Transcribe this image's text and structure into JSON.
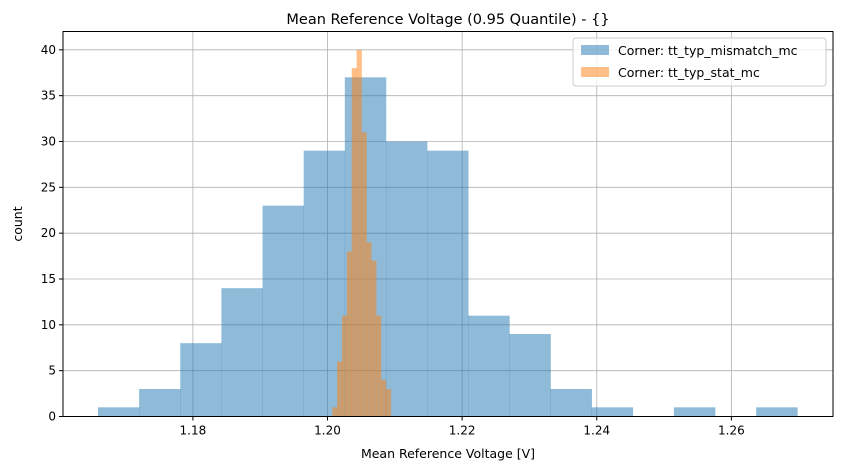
{
  "chart_data": {
    "type": "histogram",
    "title": "Mean Reference Voltage (0.95 Quantile) - {}",
    "xlabel": "Mean Reference Voltage [V]",
    "ylabel": "count",
    "xlim": [
      1.1607,
      1.2751
    ],
    "ylim": [
      0,
      42
    ],
    "xticks": [
      1.18,
      1.2,
      1.22,
      1.24,
      1.26
    ],
    "xtick_labels": [
      "1.18",
      "1.20",
      "1.22",
      "1.24",
      "1.26"
    ],
    "yticks": [
      0,
      5,
      10,
      15,
      20,
      25,
      30,
      35,
      40
    ],
    "yticks_labels": [
      "0",
      "5",
      "10",
      "15",
      "20",
      "25",
      "30",
      "35",
      "40"
    ],
    "grid": true,
    "legend_position": "top-right",
    "series": [
      {
        "name": "Corner: tt_typ_mismatch_mc",
        "color": "#1f77b4",
        "alpha": 0.5,
        "bin_start": 1.1659,
        "bin_end": 1.2698,
        "counts": [
          1,
          3,
          8,
          14,
          23,
          29,
          37,
          30,
          29,
          11,
          9,
          3,
          1,
          0,
          1,
          0,
          1
        ]
      },
      {
        "name": "Corner: tt_typ_stat_mc",
        "color": "#ff7f0e",
        "alpha": 0.5,
        "bin_start": 1.2007,
        "bin_end": 1.2094,
        "counts": [
          1,
          6,
          11,
          18,
          38,
          40,
          31,
          19,
          17,
          11,
          4,
          3
        ]
      }
    ]
  }
}
